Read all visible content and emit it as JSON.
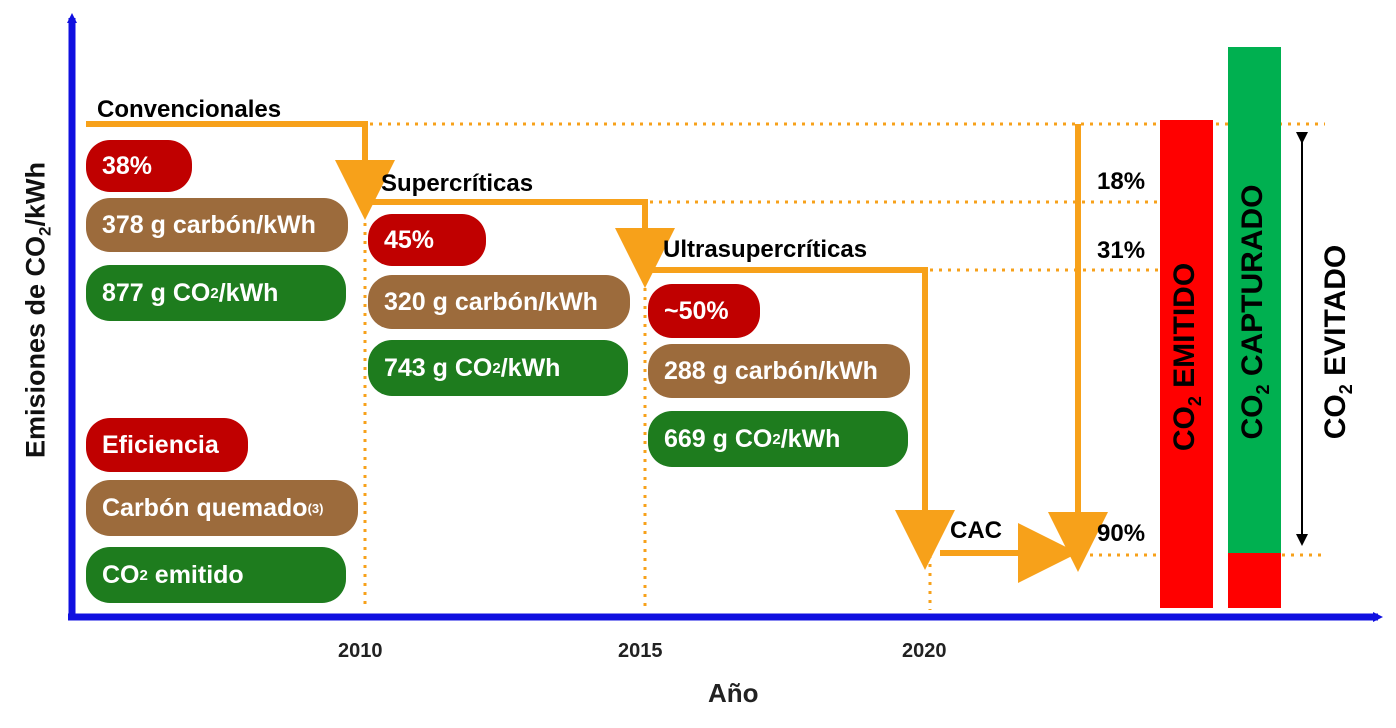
{
  "axes": {
    "y_label_pre": "Emisiones de CO",
    "y_label_sub": "2",
    "y_label_post": "/kWh",
    "x_label": "Año",
    "x_ticks": [
      "2010",
      "2015",
      "2020"
    ]
  },
  "stages": {
    "conventional": {
      "title": "Convencionales",
      "efficiency": "38%",
      "coal": "378 g carbón/kWh",
      "co2_pre": "877 g CO",
      "co2_sub": "2",
      "co2_post": "/kWh"
    },
    "supercritical": {
      "title": "Supercríticas",
      "efficiency": "45%",
      "coal": "320 g carbón/kWh",
      "co2_pre": "743 g CO",
      "co2_sub": "2",
      "co2_post": "/kWh"
    },
    "ultrasupercritical": {
      "title": "Ultrasupercríticas",
      "efficiency": "~50%",
      "coal": "288 g carbón/kWh",
      "co2_pre": "669 g CO",
      "co2_sub": "2",
      "co2_post": "/kWh"
    },
    "cac": {
      "title": "CAC"
    }
  },
  "legend": {
    "efficiency": "Eficiencia",
    "coal_pre": "Carbón quemado",
    "coal_sup": "(3)",
    "co2_pre": "CO",
    "co2_sub": "2",
    "co2_post": " emitido"
  },
  "reductions": [
    "18%",
    "31%",
    "90%"
  ],
  "bars": {
    "emitted_pre": "CO",
    "emitted_sub": "2",
    "emitted_post": " EMITIDO",
    "captured_pre": "CO",
    "captured_sub": "2",
    "captured_post": " CAPTURADO",
    "avoided_pre": "CO",
    "avoided_sub": "2",
    "avoided_post": " EVITADO"
  },
  "colors": {
    "axis": "#1010e0",
    "path": "#f7a11a",
    "efficiency": "#c00000",
    "coal": "#9c6b3c",
    "co2": "#1e7c1e",
    "emitted_bar": "#ff0000",
    "captured_bar": "#00b050"
  }
}
